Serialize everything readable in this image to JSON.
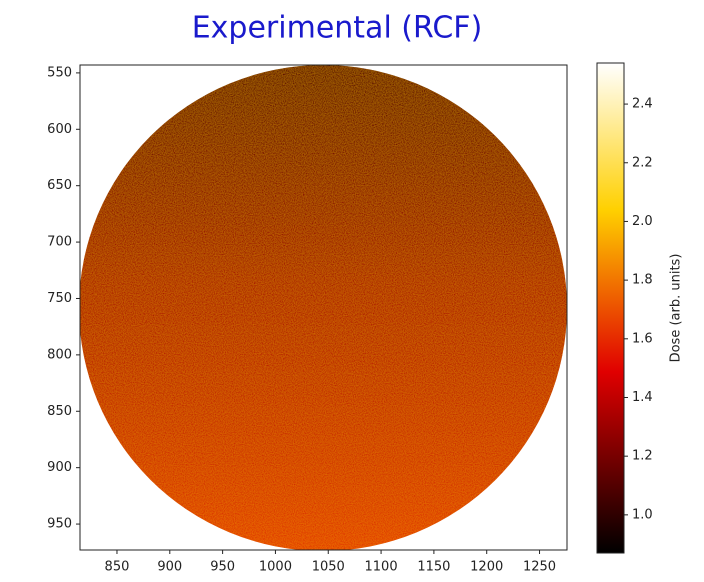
{
  "chart_data": {
    "type": "heatmap",
    "title": "Experimental (RCF)",
    "xlim": [
      815,
      1276
    ],
    "xticks": [
      850,
      900,
      950,
      1000,
      1050,
      1100,
      1150,
      1200,
      1250
    ],
    "ylim": [
      973,
      543
    ],
    "yticks": [
      550,
      600,
      650,
      700,
      750,
      800,
      850,
      900,
      950
    ],
    "colormap": "hot",
    "colorbar": {
      "label": "Dose (arb. units)",
      "lim": [
        0.87,
        2.54
      ],
      "ticks": [
        {
          "value": 1.0,
          "label": "1.0"
        },
        {
          "value": 1.2,
          "label": "1.2"
        },
        {
          "value": 1.4,
          "label": "1.4"
        },
        {
          "value": 1.6,
          "label": "1.6"
        },
        {
          "value": 1.8,
          "label": "1.8"
        },
        {
          "value": 2.0,
          "label": "2.0"
        },
        {
          "value": 2.2,
          "label": "2.2"
        },
        {
          "value": 2.4,
          "label": "2.4"
        }
      ]
    }
  }
}
